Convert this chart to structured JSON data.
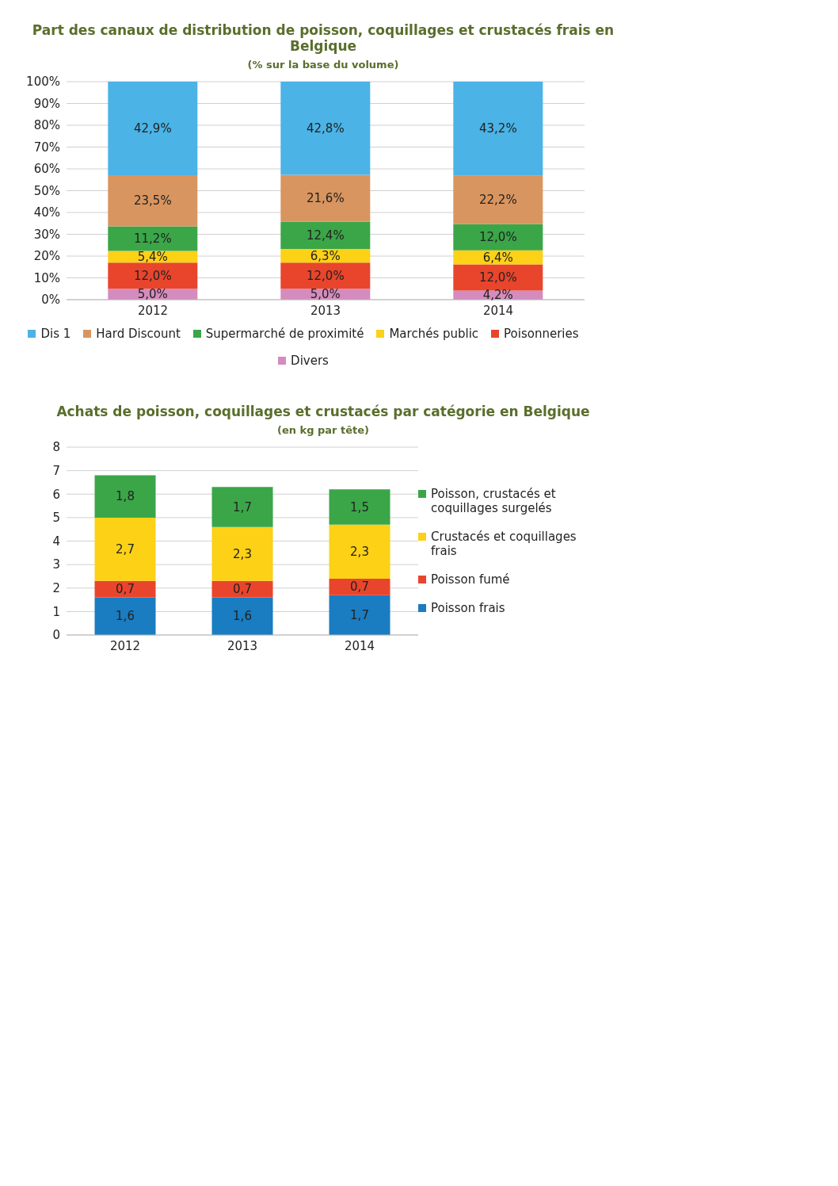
{
  "chart_data": [
    {
      "type": "bar",
      "title": "Part des canaux de distribution de poisson, coquillages et crustacés frais en Belgique",
      "subtitle": "(% sur la base du volume)",
      "categories": [
        "2012",
        "2013",
        "2014"
      ],
      "stacked": true,
      "ylim": [
        0,
        100
      ],
      "yticks": [
        {
          "value": 0,
          "label": "0%"
        },
        {
          "value": 10,
          "label": "10%"
        },
        {
          "value": 20,
          "label": "20%"
        },
        {
          "value": 30,
          "label": "30%"
        },
        {
          "value": 40,
          "label": "40%"
        },
        {
          "value": 50,
          "label": "50%"
        },
        {
          "value": 60,
          "label": "60%"
        },
        {
          "value": 70,
          "label": "70%"
        },
        {
          "value": 80,
          "label": "80%"
        },
        {
          "value": 90,
          "label": "90%"
        },
        {
          "value": 100,
          "label": "100%"
        }
      ],
      "grid": "y",
      "legend": "bottom",
      "series": [
        {
          "name": "Divers",
          "color": "#d48bbd",
          "values": [
            5.0,
            5.0,
            4.2
          ],
          "value_labels": [
            "5,0%",
            "5,0%",
            "4,2%"
          ]
        },
        {
          "name": "Poisonneries",
          "color": "#e8452c",
          "values": [
            12.0,
            12.0,
            12.0
          ],
          "value_labels": [
            "12,0%",
            "12,0%",
            "12,0%"
          ]
        },
        {
          "name": "Marchés public",
          "color": "#fcd116",
          "values": [
            5.4,
            6.3,
            6.4
          ],
          "value_labels": [
            "5,4%",
            "6,3%",
            "6,4%"
          ]
        },
        {
          "name": "Supermarché de proximité",
          "color": "#3aa648",
          "values": [
            11.2,
            12.4,
            12.0
          ],
          "value_labels": [
            "11,2%",
            "12,4%",
            "12,0%"
          ]
        },
        {
          "name": "Hard Discount",
          "color": "#d9955f",
          "values": [
            23.5,
            21.6,
            22.2
          ],
          "value_labels": [
            "23,5%",
            "21,6%",
            "22,2%"
          ]
        },
        {
          "name": "Dis 1",
          "color": "#4bb3e6",
          "values": [
            42.9,
            42.8,
            43.2
          ],
          "value_labels": [
            "42,9%",
            "42,8%",
            "43,2%"
          ]
        }
      ]
    },
    {
      "type": "bar",
      "title": "Achats de poisson, coquillages et crustacés par catégorie en Belgique",
      "subtitle": "(en kg par tête)",
      "categories": [
        "2012",
        "2013",
        "2014"
      ],
      "stacked": true,
      "ylim": [
        0,
        8
      ],
      "yticks": [
        0,
        1,
        2,
        3,
        4,
        5,
        6,
        7,
        8
      ],
      "grid": "y",
      "legend": "right",
      "series": [
        {
          "name": "Poisson frais",
          "color": "#1a7cc1",
          "values": [
            1.6,
            1.6,
            1.7
          ],
          "value_labels": [
            "1,6",
            "1,6",
            "1,7"
          ]
        },
        {
          "name": "Poisson fumé",
          "color": "#e8452c",
          "values": [
            0.7,
            0.7,
            0.7
          ],
          "value_labels": [
            "0,7",
            "0,7",
            "0,7"
          ]
        },
        {
          "name": "Crustacés et coquillages frais",
          "color": "#fcd116",
          "values": [
            2.7,
            2.3,
            2.3
          ],
          "value_labels": [
            "2,7",
            "2,3",
            "2,3"
          ]
        },
        {
          "name": "Poisson, crustacés et coquillages surgelés",
          "color": "#3aa648",
          "values": [
            1.8,
            1.7,
            1.5
          ],
          "value_labels": [
            "1,8",
            "1,7",
            "1,5"
          ]
        }
      ]
    }
  ]
}
